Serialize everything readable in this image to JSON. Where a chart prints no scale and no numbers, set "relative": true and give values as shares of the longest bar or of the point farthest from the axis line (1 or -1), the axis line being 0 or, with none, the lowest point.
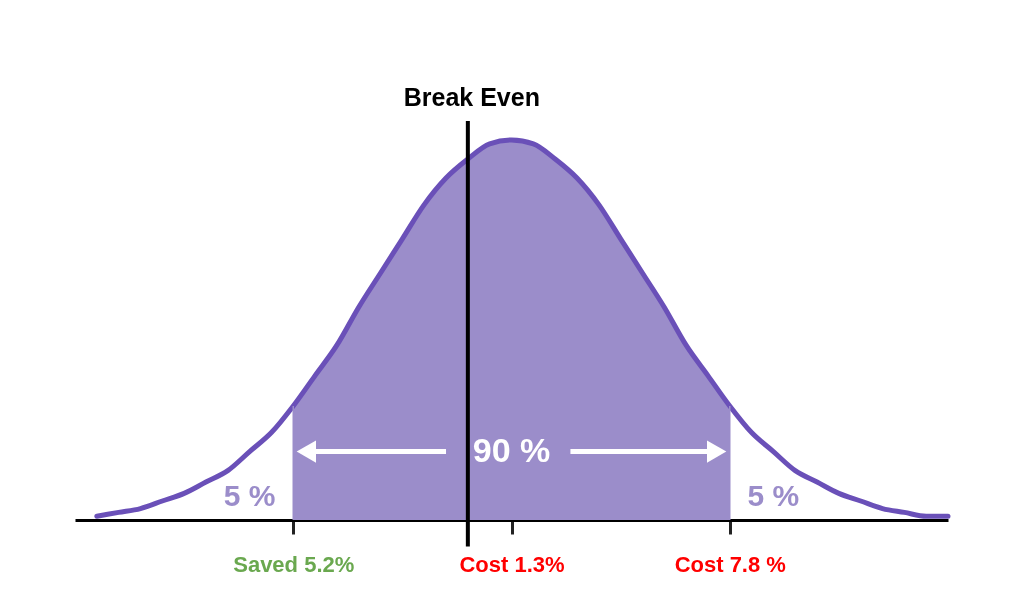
{
  "chart_data": {
    "type": "line",
    "relative": true,
    "legend": false,
    "grid": false,
    "categories": [
      null,
      null,
      null,
      null,
      null,
      null,
      null,
      null,
      null,
      null,
      "Saved 5.2%",
      null,
      null,
      null,
      null,
      null,
      null,
      null,
      "Break Even",
      null,
      "Cost 1.3%",
      null,
      null,
      null,
      null,
      null,
      null,
      null,
      null,
      null,
      "Cost 7.8 %",
      null,
      null,
      null,
      null,
      null,
      null,
      null,
      null,
      null,
      null
    ],
    "series": [
      {
        "type": "area",
        "color": "#9b8dca",
        "values": [
          null,
          null,
          null,
          null,
          null,
          null,
          null,
          null,
          null,
          null,
          0.3,
          0.38,
          0.46,
          0.56,
          0.65,
          0.74,
          0.83,
          0.9,
          0.95,
          0.99,
          1,
          0.99,
          0.95,
          0.9,
          0.83,
          0.74,
          0.65,
          0.56,
          0.46,
          0.38,
          0.3,
          null,
          null,
          null,
          null,
          null,
          null,
          null,
          null,
          null,
          null
        ]
      },
      {
        "color": "#6a50b8",
        "values": [
          null,
          0.01,
          0.02,
          0.03,
          0.05,
          0.07,
          0.1,
          0.13,
          0.18,
          0.23,
          0.3,
          0.38,
          0.46,
          0.56,
          0.65,
          0.74,
          0.83,
          0.9,
          0.95,
          0.99,
          1,
          0.99,
          0.95,
          0.9,
          0.83,
          0.74,
          0.65,
          0.56,
          0.46,
          0.38,
          0.3,
          0.23,
          0.18,
          0.13,
          0.1,
          0.07,
          0.05,
          0.03,
          0.02,
          0.01,
          0.01
        ]
      }
    ],
    "ref_lines": [
      {
        "axis": "x",
        "value": "Break Even"
      }
    ],
    "annotations": [
      "90 %",
      "5 %",
      "5 %"
    ]
  }
}
